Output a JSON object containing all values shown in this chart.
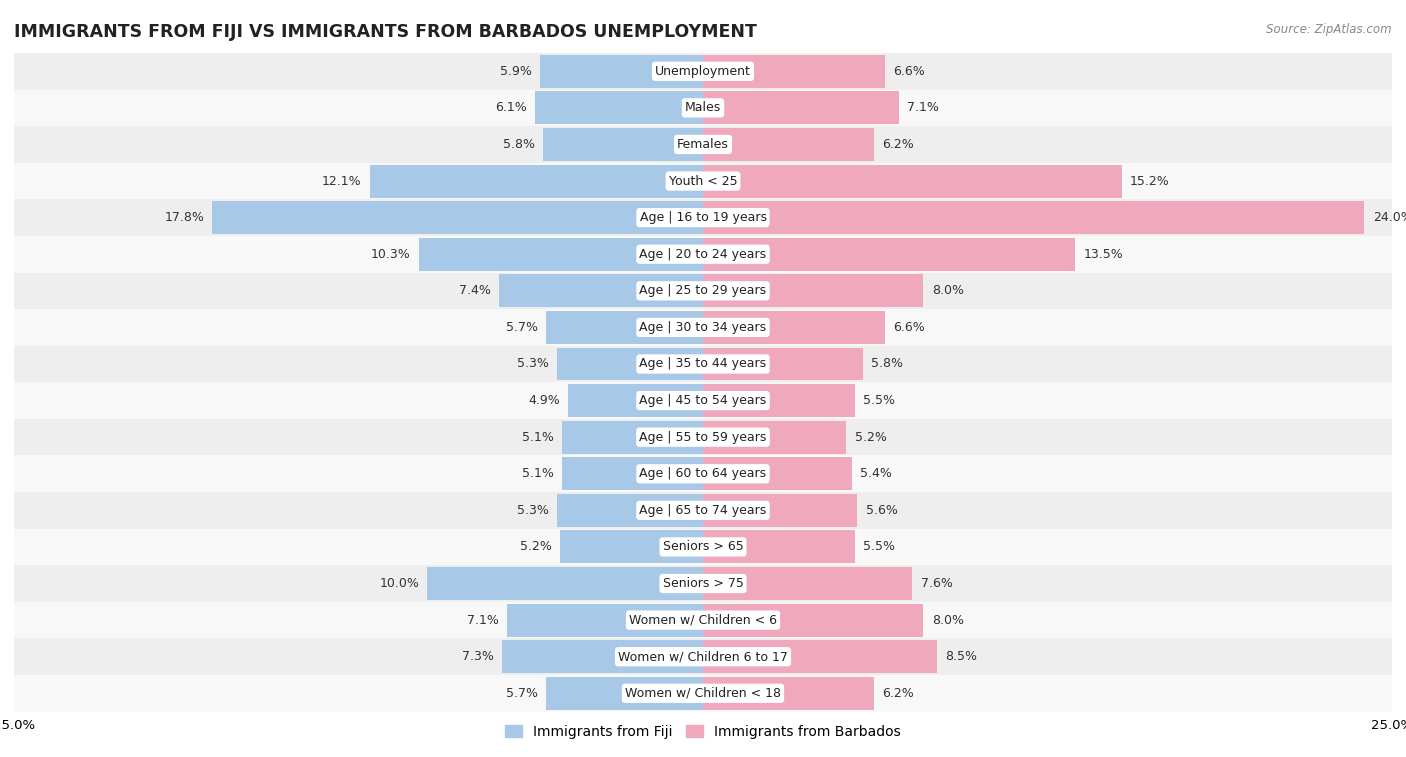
{
  "title": "IMMIGRANTS FROM FIJI VS IMMIGRANTS FROM BARBADOS UNEMPLOYMENT",
  "source": "Source: ZipAtlas.com",
  "categories": [
    "Unemployment",
    "Males",
    "Females",
    "Youth < 25",
    "Age | 16 to 19 years",
    "Age | 20 to 24 years",
    "Age | 25 to 29 years",
    "Age | 30 to 34 years",
    "Age | 35 to 44 years",
    "Age | 45 to 54 years",
    "Age | 55 to 59 years",
    "Age | 60 to 64 years",
    "Age | 65 to 74 years",
    "Seniors > 65",
    "Seniors > 75",
    "Women w/ Children < 6",
    "Women w/ Children 6 to 17",
    "Women w/ Children < 18"
  ],
  "fiji_values": [
    5.9,
    6.1,
    5.8,
    12.1,
    17.8,
    10.3,
    7.4,
    5.7,
    5.3,
    4.9,
    5.1,
    5.1,
    5.3,
    5.2,
    10.0,
    7.1,
    7.3,
    5.7
  ],
  "barbados_values": [
    6.6,
    7.1,
    6.2,
    15.2,
    24.0,
    13.5,
    8.0,
    6.6,
    5.8,
    5.5,
    5.2,
    5.4,
    5.6,
    5.5,
    7.6,
    8.0,
    8.5,
    6.2
  ],
  "fiji_color": "#a8c8e8",
  "barbados_color": "#f0a8bc",
  "row_bg_light": "#eeeeee",
  "row_bg_white": "#f8f8f8",
  "xlim": 25.0,
  "label_fontsize": 9.0,
  "category_fontsize": 9.0,
  "title_fontsize": 12.5,
  "legend_fontsize": 10,
  "source_fontsize": 8.5
}
